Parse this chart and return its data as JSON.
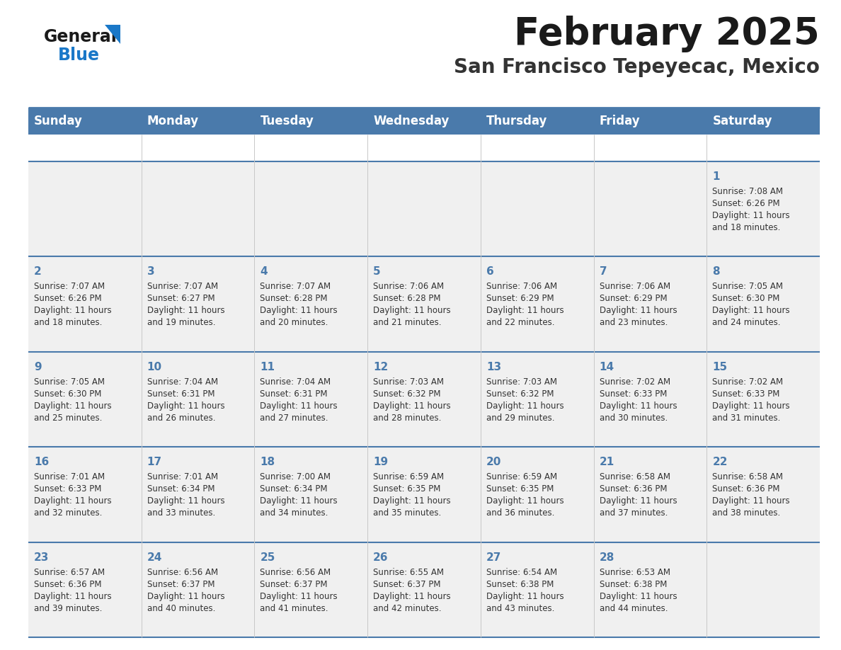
{
  "title": "February 2025",
  "subtitle": "San Francisco Tepeyecac, Mexico",
  "days_of_week": [
    "Sunday",
    "Monday",
    "Tuesday",
    "Wednesday",
    "Thursday",
    "Friday",
    "Saturday"
  ],
  "header_bg": "#4a7aab",
  "header_text_color": "#ffffff",
  "cell_bg": "#f0f0f0",
  "separator_color": "#4a7aab",
  "day_number_color": "#4a7aab",
  "text_color": "#333333",
  "logo_general_color": "#1a1a1a",
  "logo_blue_color": "#1a78c8",
  "title_color": "#1a1a1a",
  "subtitle_color": "#333333",
  "calendar_data": [
    {
      "day": 1,
      "col": 6,
      "row": 0,
      "sunrise": "7:08 AM",
      "sunset": "6:26 PM",
      "daylight_hours": 11,
      "daylight_minutes": 18
    },
    {
      "day": 2,
      "col": 0,
      "row": 1,
      "sunrise": "7:07 AM",
      "sunset": "6:26 PM",
      "daylight_hours": 11,
      "daylight_minutes": 18
    },
    {
      "day": 3,
      "col": 1,
      "row": 1,
      "sunrise": "7:07 AM",
      "sunset": "6:27 PM",
      "daylight_hours": 11,
      "daylight_minutes": 19
    },
    {
      "day": 4,
      "col": 2,
      "row": 1,
      "sunrise": "7:07 AM",
      "sunset": "6:28 PM",
      "daylight_hours": 11,
      "daylight_minutes": 20
    },
    {
      "day": 5,
      "col": 3,
      "row": 1,
      "sunrise": "7:06 AM",
      "sunset": "6:28 PM",
      "daylight_hours": 11,
      "daylight_minutes": 21
    },
    {
      "day": 6,
      "col": 4,
      "row": 1,
      "sunrise": "7:06 AM",
      "sunset": "6:29 PM",
      "daylight_hours": 11,
      "daylight_minutes": 22
    },
    {
      "day": 7,
      "col": 5,
      "row": 1,
      "sunrise": "7:06 AM",
      "sunset": "6:29 PM",
      "daylight_hours": 11,
      "daylight_minutes": 23
    },
    {
      "day": 8,
      "col": 6,
      "row": 1,
      "sunrise": "7:05 AM",
      "sunset": "6:30 PM",
      "daylight_hours": 11,
      "daylight_minutes": 24
    },
    {
      "day": 9,
      "col": 0,
      "row": 2,
      "sunrise": "7:05 AM",
      "sunset": "6:30 PM",
      "daylight_hours": 11,
      "daylight_minutes": 25
    },
    {
      "day": 10,
      "col": 1,
      "row": 2,
      "sunrise": "7:04 AM",
      "sunset": "6:31 PM",
      "daylight_hours": 11,
      "daylight_minutes": 26
    },
    {
      "day": 11,
      "col": 2,
      "row": 2,
      "sunrise": "7:04 AM",
      "sunset": "6:31 PM",
      "daylight_hours": 11,
      "daylight_minutes": 27
    },
    {
      "day": 12,
      "col": 3,
      "row": 2,
      "sunrise": "7:03 AM",
      "sunset": "6:32 PM",
      "daylight_hours": 11,
      "daylight_minutes": 28
    },
    {
      "day": 13,
      "col": 4,
      "row": 2,
      "sunrise": "7:03 AM",
      "sunset": "6:32 PM",
      "daylight_hours": 11,
      "daylight_minutes": 29
    },
    {
      "day": 14,
      "col": 5,
      "row": 2,
      "sunrise": "7:02 AM",
      "sunset": "6:33 PM",
      "daylight_hours": 11,
      "daylight_minutes": 30
    },
    {
      "day": 15,
      "col": 6,
      "row": 2,
      "sunrise": "7:02 AM",
      "sunset": "6:33 PM",
      "daylight_hours": 11,
      "daylight_minutes": 31
    },
    {
      "day": 16,
      "col": 0,
      "row": 3,
      "sunrise": "7:01 AM",
      "sunset": "6:33 PM",
      "daylight_hours": 11,
      "daylight_minutes": 32
    },
    {
      "day": 17,
      "col": 1,
      "row": 3,
      "sunrise": "7:01 AM",
      "sunset": "6:34 PM",
      "daylight_hours": 11,
      "daylight_minutes": 33
    },
    {
      "day": 18,
      "col": 2,
      "row": 3,
      "sunrise": "7:00 AM",
      "sunset": "6:34 PM",
      "daylight_hours": 11,
      "daylight_minutes": 34
    },
    {
      "day": 19,
      "col": 3,
      "row": 3,
      "sunrise": "6:59 AM",
      "sunset": "6:35 PM",
      "daylight_hours": 11,
      "daylight_minutes": 35
    },
    {
      "day": 20,
      "col": 4,
      "row": 3,
      "sunrise": "6:59 AM",
      "sunset": "6:35 PM",
      "daylight_hours": 11,
      "daylight_minutes": 36
    },
    {
      "day": 21,
      "col": 5,
      "row": 3,
      "sunrise": "6:58 AM",
      "sunset": "6:36 PM",
      "daylight_hours": 11,
      "daylight_minutes": 37
    },
    {
      "day": 22,
      "col": 6,
      "row": 3,
      "sunrise": "6:58 AM",
      "sunset": "6:36 PM",
      "daylight_hours": 11,
      "daylight_minutes": 38
    },
    {
      "day": 23,
      "col": 0,
      "row": 4,
      "sunrise": "6:57 AM",
      "sunset": "6:36 PM",
      "daylight_hours": 11,
      "daylight_minutes": 39
    },
    {
      "day": 24,
      "col": 1,
      "row": 4,
      "sunrise": "6:56 AM",
      "sunset": "6:37 PM",
      "daylight_hours": 11,
      "daylight_minutes": 40
    },
    {
      "day": 25,
      "col": 2,
      "row": 4,
      "sunrise": "6:56 AM",
      "sunset": "6:37 PM",
      "daylight_hours": 11,
      "daylight_minutes": 41
    },
    {
      "day": 26,
      "col": 3,
      "row": 4,
      "sunrise": "6:55 AM",
      "sunset": "6:37 PM",
      "daylight_hours": 11,
      "daylight_minutes": 42
    },
    {
      "day": 27,
      "col": 4,
      "row": 4,
      "sunrise": "6:54 AM",
      "sunset": "6:38 PM",
      "daylight_hours": 11,
      "daylight_minutes": 43
    },
    {
      "day": 28,
      "col": 5,
      "row": 4,
      "sunrise": "6:53 AM",
      "sunset": "6:38 PM",
      "daylight_hours": 11,
      "daylight_minutes": 44
    }
  ]
}
